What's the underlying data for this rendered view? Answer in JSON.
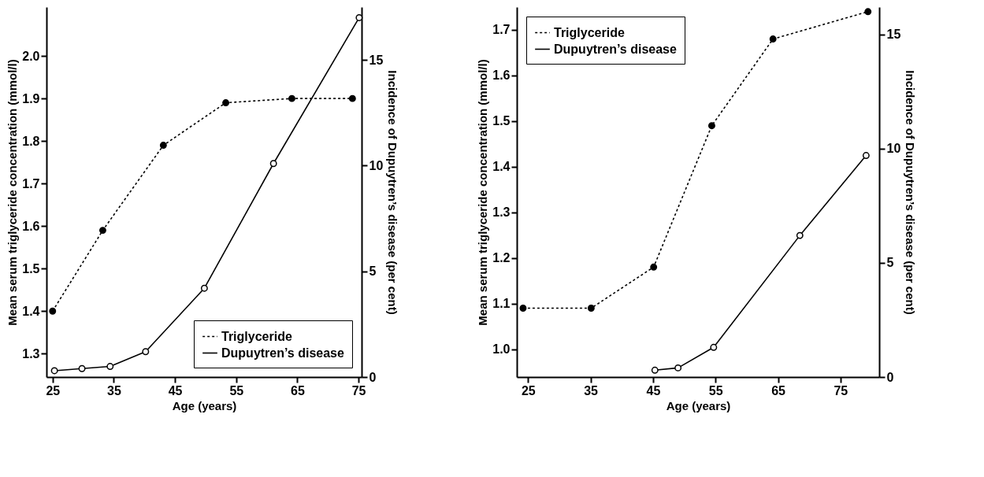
{
  "chart_data": [
    {
      "type": "line",
      "xlabel": "Age (years)",
      "ylabel": "Mean serum triglyceride concentration (mmol/l)",
      "y2label": "Incidence of Dupuytren’s disease (per cent)",
      "xlim": [
        24,
        75.5
      ],
      "xticks": [
        25,
        35,
        45,
        55,
        65,
        75
      ],
      "ylim": [
        1.245,
        2.115
      ],
      "yticks": [
        1.3,
        1.4,
        1.5,
        1.6,
        1.7,
        1.8,
        1.9,
        {
          "value": 2.0,
          "label": "2.0"
        }
      ],
      "y2lim": [
        0,
        17.5
      ],
      "y2ticks": [
        0,
        5,
        10,
        15
      ],
      "marker": "circle",
      "grid": false,
      "legend": "bottom right",
      "series": [
        {
          "name": "Triglyceride",
          "color": "#000000",
          "line_style": "dotted",
          "x": [
            25,
            33.2,
            43.1,
            53.3,
            64.1,
            74.0
          ],
          "values": [
            1.4,
            1.59,
            1.79,
            1.89,
            1.9,
            1.9
          ]
        },
        {
          "name": "Dupuytren’s disease",
          "color": "#000000",
          "line_style": "solid",
          "axis": "y2",
          "x": [
            25.3,
            29.8,
            34.4,
            40.2,
            49.8,
            61.1,
            75.1
          ],
          "values": [
            0.3,
            0.4,
            0.5,
            1.2,
            4.2,
            10.1,
            17.0
          ]
        }
      ]
    },
    {
      "type": "line",
      "xlabel": "Age (years)",
      "ylabel": "Mean serum triglyceride concentration (mmol/l)",
      "y2label": "Incidence of Dupuytren’s disease (per cent)",
      "xlim": [
        23.2,
        81.2
      ],
      "xticks": [
        25,
        35,
        45,
        55,
        65,
        75
      ],
      "ylim": [
        0.939,
        1.75
      ],
      "yticks": [
        {
          "value": 1.0,
          "label": "1.0"
        },
        1.1,
        1.2,
        1.3,
        1.4,
        1.5,
        1.6,
        1.7
      ],
      "y2lim": [
        0,
        16.2
      ],
      "y2ticks": [
        0,
        5,
        10,
        15
      ],
      "marker": "circle",
      "grid": false,
      "legend": "top left",
      "series": [
        {
          "name": "Triglyceride",
          "color": "#000000",
          "line_style": "dotted",
          "x": [
            24.2,
            35.1,
            45.1,
            54.4,
            64.2,
            79.4
          ],
          "values": [
            1.09,
            1.09,
            1.18,
            1.49,
            1.68,
            1.74
          ]
        },
        {
          "name": "Dupuytren’s disease",
          "color": "#000000",
          "line_style": "solid",
          "axis": "y2",
          "x": [
            45.3,
            49.0,
            54.7,
            68.5,
            79.1
          ],
          "values": [
            0.3,
            0.4,
            1.3,
            6.2,
            9.7
          ]
        }
      ]
    }
  ]
}
